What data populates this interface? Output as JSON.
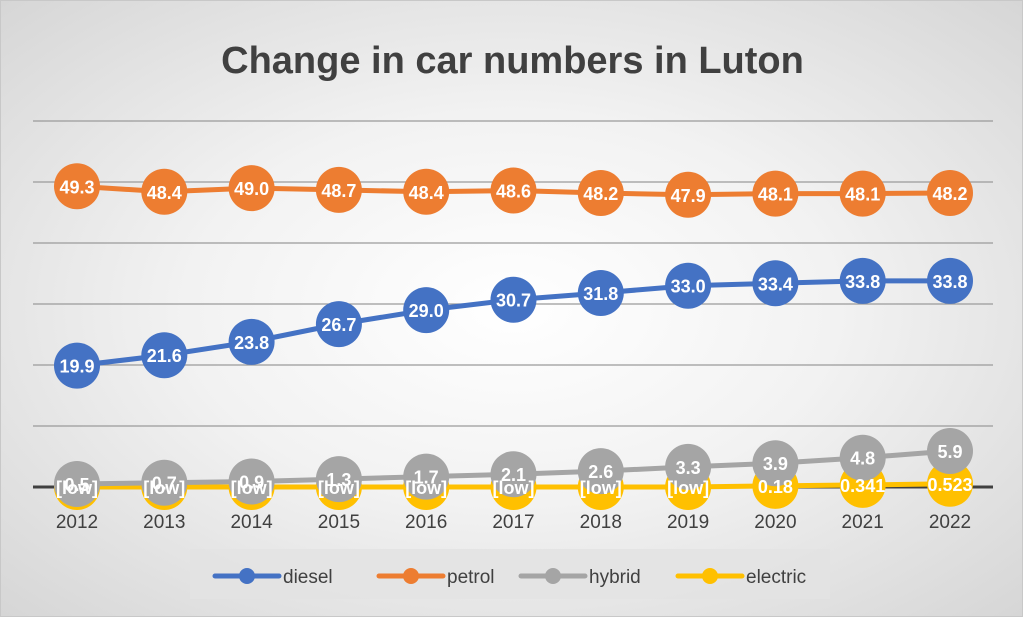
{
  "chart_data": {
    "type": "line",
    "title": "Change in car numbers in Luton",
    "xlabel": "",
    "ylabel": "",
    "categories": [
      "2012",
      "2013",
      "2014",
      "2015",
      "2016",
      "2017",
      "2018",
      "2019",
      "2020",
      "2021",
      "2022"
    ],
    "ylim": [
      0,
      60
    ],
    "grid": true,
    "legend_position": "bottom",
    "series": [
      {
        "name": "diesel",
        "color": "#4472C4",
        "values": [
          19.9,
          21.6,
          23.8,
          26.7,
          29.0,
          30.7,
          31.8,
          33.0,
          33.4,
          33.8,
          33.8
        ],
        "labels": [
          "19.9",
          "21.6",
          "23.8",
          "26.7",
          "29.0",
          "30.7",
          "31.8",
          "33.0",
          "33.4",
          "33.8",
          "33.8"
        ]
      },
      {
        "name": "petrol",
        "color": "#ED7D31",
        "values": [
          49.3,
          48.4,
          49.0,
          48.7,
          48.4,
          48.6,
          48.2,
          47.9,
          48.1,
          48.1,
          48.2
        ],
        "labels": [
          "49.3",
          "48.4",
          "49.0",
          "48.7",
          "48.4",
          "48.6",
          "48.2",
          "47.9",
          "48.1",
          "48.1",
          "48.2"
        ]
      },
      {
        "name": "hybrid",
        "color": "#A5A5A5",
        "values": [
          0.5,
          0.7,
          0.9,
          1.3,
          1.7,
          2.1,
          2.6,
          3.3,
          3.9,
          4.8,
          5.9
        ],
        "labels": [
          "0.5",
          "0.7",
          "0.9",
          "1.3",
          "1.7",
          "2.1",
          "2.6",
          "3.3",
          "3.9",
          "4.8",
          "5.9"
        ]
      },
      {
        "name": "electric",
        "color": "#FFC000",
        "values": [
          0,
          0,
          0,
          0,
          0,
          0,
          0,
          0,
          0.18,
          0.341,
          0.523
        ],
        "labels": [
          "[low]",
          "[low]",
          "[low]",
          "[low]",
          "[low]",
          "[low]",
          "[low]",
          "[low]",
          "0.18",
          "0.341",
          "0.523"
        ]
      }
    ]
  }
}
